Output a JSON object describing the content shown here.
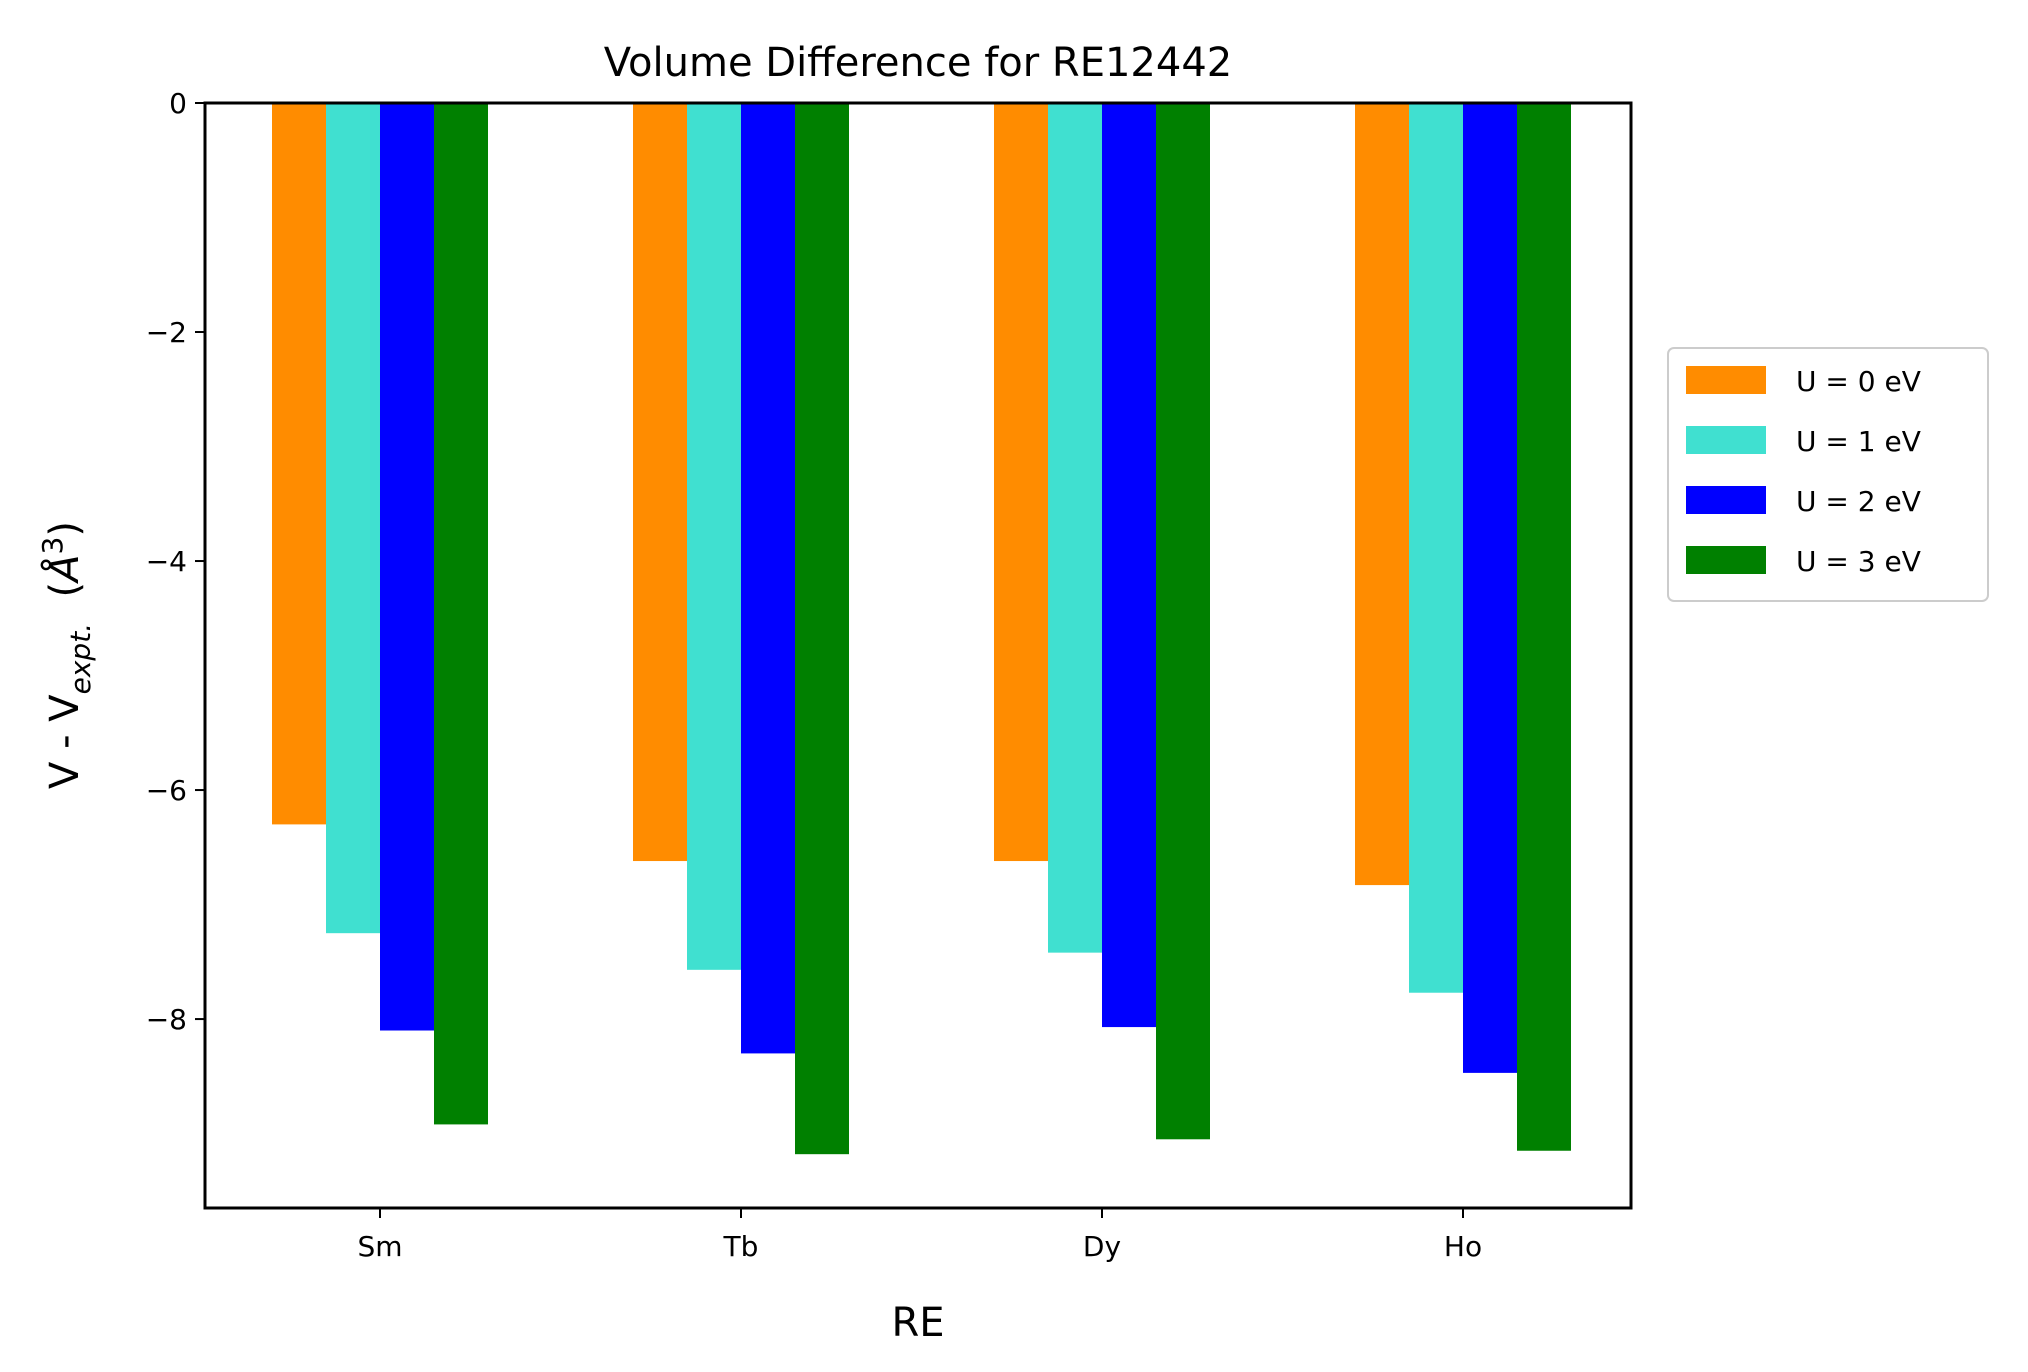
{
  "chart_data": {
    "type": "bar",
    "title": "Volume Difference for RE12442",
    "xlabel": "RE",
    "ylabel": {
      "prefix": "V - V",
      "subscript": "expt.",
      "suffix_open": "  (",
      "unit": "Å",
      "superscript": "3",
      "suffix_close": ")"
    },
    "categories": [
      "Sm",
      "Tb",
      "Dy",
      "Ho"
    ],
    "ylim": [
      -9.65,
      0
    ],
    "yticks": [
      0,
      -2,
      -4,
      -6,
      -8
    ],
    "ytick_labels": [
      "0",
      "−2",
      "−4",
      "−6",
      "−8"
    ],
    "legend_position": "right-center-outside",
    "series": [
      {
        "name": "U = 0 eV",
        "color": "#ff8c00",
        "values": [
          -6.3,
          -6.62,
          -6.62,
          -6.83
        ]
      },
      {
        "name": "U = 1 eV",
        "color": "#40e0d0",
        "values": [
          -7.25,
          -7.57,
          -7.42,
          -7.77
        ]
      },
      {
        "name": "U = 2 eV",
        "color": "#0000ff",
        "values": [
          -8.1,
          -8.3,
          -8.07,
          -8.47
        ]
      },
      {
        "name": "U = 3 eV",
        "color": "#008000",
        "values": [
          -8.92,
          -9.18,
          -9.05,
          -9.15
        ]
      }
    ]
  }
}
